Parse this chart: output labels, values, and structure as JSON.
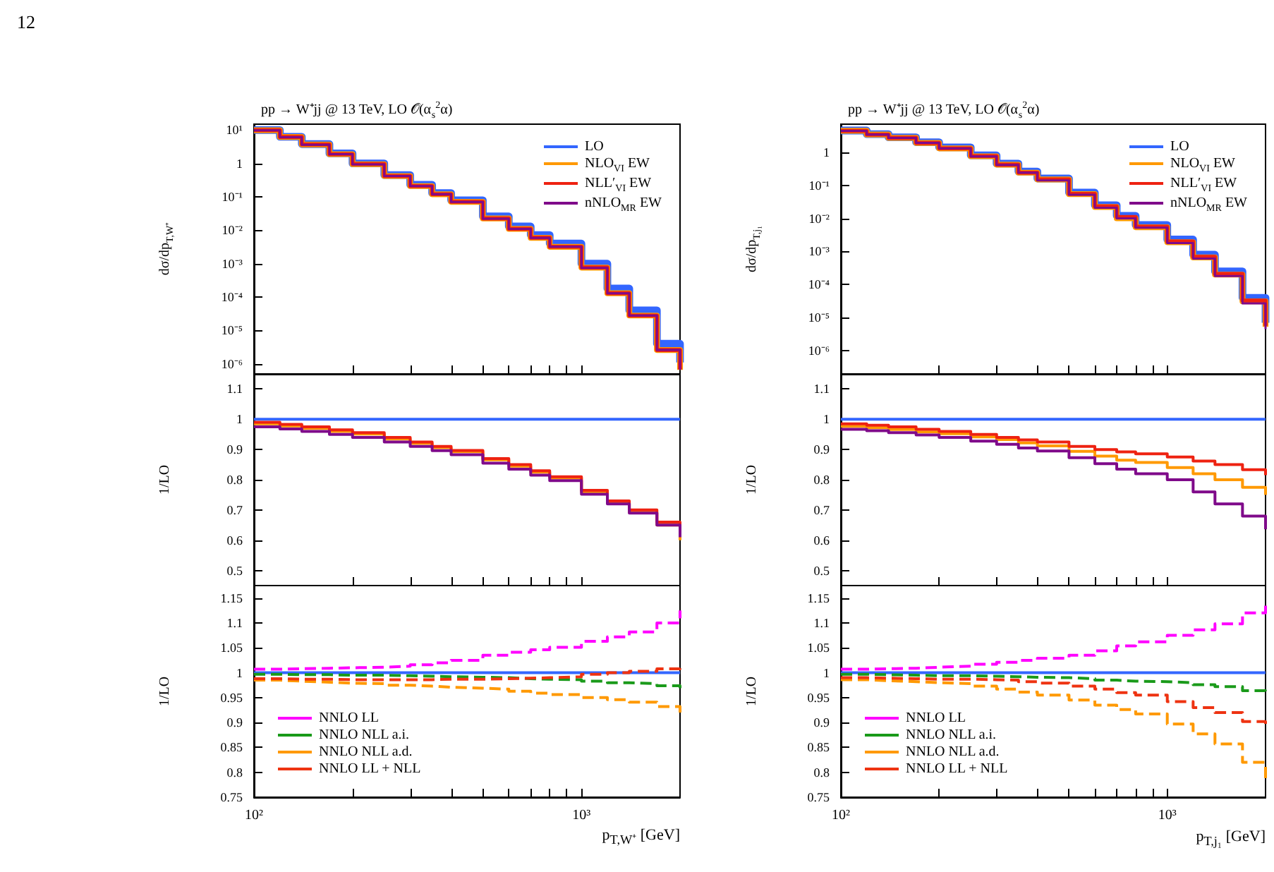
{
  "chart_data": [
    {
      "type": "step",
      "title": "pp → W⁺jj @ 13 TeV, LO 𝒪(α$_{s}$$^{2}$α)",
      "ylabel": "dσ/dp$_{T,W⁺}$",
      "annotations": [
        "12"
      ],
      "log": "xy",
      "legend": "top right",
      "tick_labels": "y",
      "x": [
        100,
        120,
        140,
        170,
        200,
        250,
        300,
        350,
        400,
        500,
        600,
        700,
        800,
        1000,
        1200,
        1400,
        1700,
        2000
      ],
      "xlim": [
        100,
        2000
      ],
      "xticks": [
        {
          "value": 100,
          "label": null
        },
        {
          "value": 200,
          "label": null
        },
        {
          "value": 300,
          "label": null
        },
        {
          "value": 400,
          "label": null
        },
        {
          "value": 500,
          "label": null
        },
        {
          "value": 600,
          "label": null
        },
        {
          "value": 700,
          "label": null
        },
        {
          "value": 800,
          "label": null
        },
        {
          "value": 900,
          "label": null
        },
        {
          "value": 1000,
          "label": null
        }
      ],
      "ylim": [
        5e-07,
        15
      ],
      "yticks": [
        {
          "value": 1e-06,
          "label": "10⁻⁶"
        },
        {
          "value": 1e-05,
          "label": "10⁻⁵"
        },
        {
          "value": 0.0001,
          "label": "10⁻⁴"
        },
        {
          "value": 0.001,
          "label": "10⁻³"
        },
        {
          "value": 0.01,
          "label": "10⁻²"
        },
        {
          "value": 0.1,
          "label": "10⁻¹"
        },
        1,
        {
          "value": 10,
          "label": "10¹"
        }
      ],
      "series": [
        {
          "name": "LO",
          "color": "#3366ff",
          "values": [
            10,
            6.3,
            3.8,
            2.0,
            1.0,
            0.45,
            0.23,
            0.13,
            0.079,
            0.026,
            0.013,
            0.0072,
            0.004,
            0.001,
            0.00018,
            4e-05,
            4e-06,
            1.1e-06
          ]
        },
        {
          "name": "NLO$_{VI}$ EW",
          "color": "#ff9900",
          "values": [
            9.9,
            6.2,
            3.7,
            1.9,
            0.95,
            0.42,
            0.21,
            0.12,
            0.071,
            0.0225,
            0.011,
            0.0059,
            0.0032,
            0.00076,
            0.00013,
            2.8e-05,
            2.6e-06,
            6.6e-07
          ]
        },
        {
          "name": "NLL′$_{VI}$ EW",
          "color": "#ee2211",
          "values": [
            9.9,
            6.2,
            3.7,
            1.9,
            0.96,
            0.42,
            0.21,
            0.12,
            0.071,
            0.0226,
            0.011,
            0.006,
            0.0032,
            0.00077,
            0.00013,
            2.8e-05,
            2.6e-06,
            6.8e-07
          ]
        },
        {
          "name": "nNLO$_{MR}$ EW",
          "color": "#7f0a8a",
          "values": [
            9.8,
            6.1,
            3.6,
            1.9,
            0.94,
            0.42,
            0.21,
            0.12,
            0.07,
            0.0222,
            0.011,
            0.0059,
            0.0032,
            0.00075,
            0.00013,
            2.8e-05,
            2.6e-06,
            6.7e-07
          ]
        }
      ]
    },
    {
      "type": "step",
      "title": "pp → W⁺jj @ 13 TeV, LO 𝒪(α$_{s}$$^{2}$α)",
      "ylabel": "dσ/dp$_{T,j₁}$",
      "log": "xy",
      "legend": "top right",
      "tick_labels": "y",
      "x": [
        100,
        120,
        140,
        170,
        200,
        250,
        300,
        350,
        400,
        500,
        600,
        700,
        800,
        1000,
        1200,
        1400,
        1700,
        2000
      ],
      "xlim": [
        100,
        2000
      ],
      "xticks": [
        {
          "value": 100,
          "label": null
        },
        {
          "value": 200,
          "label": null
        },
        {
          "value": 300,
          "label": null
        },
        {
          "value": 400,
          "label": null
        },
        {
          "value": 500,
          "label": null
        },
        {
          "value": 600,
          "label": null
        },
        {
          "value": 700,
          "label": null
        },
        {
          "value": 800,
          "label": null
        },
        {
          "value": 900,
          "label": null
        },
        {
          "value": 1000,
          "label": null
        }
      ],
      "ylim": [
        2e-07,
        7
      ],
      "yticks": [
        {
          "value": 1e-06,
          "label": "10⁻⁶"
        },
        {
          "value": 1e-05,
          "label": "10⁻⁵"
        },
        {
          "value": 0.0001,
          "label": "10⁻⁴"
        },
        {
          "value": 0.001,
          "label": "10⁻³"
        },
        {
          "value": 0.01,
          "label": "10⁻²"
        },
        {
          "value": 0.1,
          "label": "10⁻¹"
        },
        1
      ],
      "series": [
        {
          "name": "LO",
          "color": "#3366ff",
          "values": [
            4.5,
            3.5,
            2.8,
            2.0,
            1.4,
            0.8,
            0.45,
            0.26,
            0.16,
            0.06,
            0.025,
            0.012,
            0.0063,
            0.0023,
            0.0008,
            0.00025,
            4e-05,
            7e-06
          ]
        },
        {
          "name": "NLO$_{VI}$ EW",
          "color": "#ff9900",
          "values": [
            4.4,
            3.4,
            2.7,
            1.9,
            1.3,
            0.75,
            0.42,
            0.24,
            0.15,
            0.054,
            0.022,
            0.01,
            0.0054,
            0.0019,
            0.00066,
            0.0002,
            3.1e-05,
            5.3e-06
          ]
        },
        {
          "name": "NLL′$_{VI}$ EW",
          "color": "#ee2211",
          "values": [
            4.4,
            3.4,
            2.7,
            1.9,
            1.3,
            0.76,
            0.42,
            0.24,
            0.15,
            0.055,
            0.023,
            0.011,
            0.0056,
            0.002,
            0.00069,
            0.00021,
            3.3e-05,
            5.7e-06
          ]
        },
        {
          "name": "nNLO$_{MR}$ EW",
          "color": "#7f0a8a",
          "values": [
            4.4,
            3.4,
            2.7,
            1.9,
            1.3,
            0.74,
            0.41,
            0.24,
            0.14,
            0.052,
            0.021,
            0.01,
            0.0052,
            0.0018,
            0.00061,
            0.00018,
            2.7e-05,
            4.5e-06
          ]
        }
      ]
    },
    {
      "type": "step",
      "ylabel": "1/LO",
      "log": "x",
      "tick_labels": "y",
      "x": [
        100,
        120,
        140,
        170,
        200,
        250,
        300,
        350,
        400,
        500,
        600,
        700,
        800,
        1000,
        1200,
        1400,
        1700,
        2000
      ],
      "xlim": [
        100,
        2000
      ],
      "xticks": [
        {
          "value": 100,
          "label": null
        },
        {
          "value": 200,
          "label": null
        },
        {
          "value": 300,
          "label": null
        },
        {
          "value": 400,
          "label": null
        },
        {
          "value": 500,
          "label": null
        },
        {
          "value": 600,
          "label": null
        },
        {
          "value": 700,
          "label": null
        },
        {
          "value": 800,
          "label": null
        },
        {
          "value": 900,
          "label": null
        },
        {
          "value": 1000,
          "label": null
        }
      ],
      "ylim": [
        0.45,
        1.15
      ],
      "yticks": [
        0.5,
        0.6,
        0.7,
        0.8,
        0.9,
        1,
        1.1
      ],
      "series": [
        {
          "color": "#3366ff",
          "values": [
            1,
            1,
            1,
            1,
            1,
            1,
            1,
            1,
            1,
            1,
            1,
            1,
            1,
            1,
            1,
            1,
            1,
            1
          ]
        },
        {
          "color": "#ff9900",
          "values": [
            0.985,
            0.978,
            0.97,
            0.96,
            0.951,
            0.935,
            0.92,
            0.906,
            0.893,
            0.866,
            0.845,
            0.825,
            0.806,
            0.76,
            0.725,
            0.692,
            0.65,
            0.6
          ]
        },
        {
          "color": "#ee2211",
          "values": [
            0.99,
            0.983,
            0.975,
            0.965,
            0.956,
            0.94,
            0.925,
            0.91,
            0.897,
            0.87,
            0.85,
            0.83,
            0.81,
            0.765,
            0.73,
            0.7,
            0.66,
            0.62
          ]
        },
        {
          "color": "#7f0a8a",
          "values": [
            0.975,
            0.968,
            0.96,
            0.95,
            0.94,
            0.925,
            0.91,
            0.896,
            0.883,
            0.855,
            0.835,
            0.815,
            0.797,
            0.752,
            0.72,
            0.69,
            0.65,
            0.61
          ]
        }
      ]
    },
    {
      "type": "step",
      "ylabel": "1/LO",
      "log": "x",
      "tick_labels": "y",
      "x": [
        100,
        120,
        140,
        170,
        200,
        250,
        300,
        350,
        400,
        500,
        600,
        700,
        800,
        1000,
        1200,
        1400,
        1700,
        2000
      ],
      "xlim": [
        100,
        2000
      ],
      "xticks": [
        {
          "value": 100,
          "label": null
        },
        {
          "value": 200,
          "label": null
        },
        {
          "value": 300,
          "label": null
        },
        {
          "value": 400,
          "label": null
        },
        {
          "value": 500,
          "label": null
        },
        {
          "value": 600,
          "label": null
        },
        {
          "value": 700,
          "label": null
        },
        {
          "value": 800,
          "label": null
        },
        {
          "value": 900,
          "label": null
        },
        {
          "value": 1000,
          "label": null
        }
      ],
      "ylim": [
        0.45,
        1.15
      ],
      "yticks": [
        0.5,
        0.6,
        0.7,
        0.8,
        0.9,
        1,
        1.1
      ],
      "series": [
        {
          "color": "#3366ff",
          "values": [
            1,
            1,
            1,
            1,
            1,
            1,
            1,
            1,
            1,
            1,
            1,
            1,
            1,
            1,
            1,
            1,
            1,
            1
          ]
        },
        {
          "color": "#ff9900",
          "values": [
            0.977,
            0.972,
            0.966,
            0.958,
            0.952,
            0.942,
            0.933,
            0.922,
            0.912,
            0.894,
            0.878,
            0.865,
            0.857,
            0.84,
            0.82,
            0.8,
            0.775,
            0.75
          ]
        },
        {
          "color": "#ee2211",
          "values": [
            0.985,
            0.98,
            0.975,
            0.967,
            0.96,
            0.95,
            0.94,
            0.932,
            0.925,
            0.91,
            0.9,
            0.892,
            0.886,
            0.875,
            0.862,
            0.85,
            0.833,
            0.815
          ]
        },
        {
          "color": "#7f0a8a",
          "values": [
            0.967,
            0.962,
            0.956,
            0.948,
            0.94,
            0.928,
            0.917,
            0.905,
            0.895,
            0.873,
            0.853,
            0.835,
            0.82,
            0.8,
            0.76,
            0.72,
            0.68,
            0.636
          ]
        }
      ]
    },
    {
      "type": "step",
      "ylabel": "1/LO",
      "xlabel": "p$_{T,W⁺}$ [GeV]",
      "log": "x",
      "legend": "bottom left",
      "x": [
        100,
        120,
        140,
        170,
        200,
        250,
        300,
        350,
        400,
        500,
        600,
        700,
        800,
        1000,
        1200,
        1400,
        1700,
        2000
      ],
      "xlim": [
        100,
        2000
      ],
      "xticks": [
        {
          "value": 100,
          "label": "10²"
        },
        {
          "value": 200,
          "label": null
        },
        {
          "value": 300,
          "label": null
        },
        {
          "value": 400,
          "label": null
        },
        {
          "value": 500,
          "label": null
        },
        {
          "value": 600,
          "label": null
        },
        {
          "value": 700,
          "label": null
        },
        {
          "value": 800,
          "label": null
        },
        {
          "value": 900,
          "label": null
        },
        {
          "value": 1000,
          "label": "10³"
        }
      ],
      "ylim": [
        0.75,
        1.175
      ],
      "yticks": [
        0.75,
        0.8,
        0.85,
        0.9,
        0.95,
        1,
        1.05,
        1.1,
        1.15
      ],
      "series": [
        {
          "color": "#3366ff",
          "values": [
            1,
            1,
            1,
            1,
            1,
            1,
            1,
            1,
            1,
            1,
            1,
            1,
            1,
            1,
            1,
            1,
            1,
            1
          ]
        },
        {
          "name": "NNLO LL",
          "color": "#ff00ff",
          "line_style": "dashed",
          "values": [
            1.007,
            1.008,
            1.009,
            1.01,
            1.011,
            1.013,
            1.016,
            1.02,
            1.025,
            1.035,
            1.041,
            1.046,
            1.051,
            1.063,
            1.072,
            1.082,
            1.1,
            1.125
          ]
        },
        {
          "name": "NNLO NLL a.i.",
          "color": "#1a9a1a",
          "line_style": "dashed",
          "values": [
            0.997,
            0.996,
            0.996,
            0.995,
            0.995,
            0.994,
            0.993,
            0.992,
            0.991,
            0.99,
            0.988,
            0.987,
            0.986,
            0.983,
            0.98,
            0.978,
            0.974,
            0.969
          ]
        },
        {
          "name": "NNLO NLL a.d.",
          "color": "#ff9900",
          "line_style": "dashed",
          "values": [
            0.985,
            0.983,
            0.981,
            0.979,
            0.978,
            0.975,
            0.973,
            0.971,
            0.969,
            0.967,
            0.963,
            0.959,
            0.956,
            0.95,
            0.946,
            0.941,
            0.932,
            0.92
          ]
        },
        {
          "name": "NNLO LL + NLL",
          "color": "#ee3311",
          "line_style": "dashed",
          "values": [
            0.988,
            0.987,
            0.987,
            0.986,
            0.986,
            0.986,
            0.986,
            0.987,
            0.987,
            0.988,
            0.989,
            0.99,
            0.992,
            0.997,
            1.0,
            1.003,
            1.008,
            1.016
          ]
        }
      ]
    },
    {
      "type": "step",
      "ylabel": "1/LO",
      "xlabel": "p$_{T,j₁}$ [GeV]",
      "log": "x",
      "legend": "bottom left",
      "x": [
        100,
        120,
        140,
        170,
        200,
        250,
        300,
        350,
        400,
        500,
        600,
        700,
        800,
        1000,
        1200,
        1400,
        1700,
        2000
      ],
      "xlim": [
        100,
        2000
      ],
      "xticks": [
        {
          "value": 100,
          "label": "10²"
        },
        {
          "value": 200,
          "label": null
        },
        {
          "value": 300,
          "label": null
        },
        {
          "value": 400,
          "label": null
        },
        {
          "value": 500,
          "label": null
        },
        {
          "value": 600,
          "label": null
        },
        {
          "value": 700,
          "label": null
        },
        {
          "value": 800,
          "label": null
        },
        {
          "value": 900,
          "label": null
        },
        {
          "value": 1000,
          "label": "10³"
        }
      ],
      "ylim": [
        0.75,
        1.175
      ],
      "yticks": [
        0.75,
        0.8,
        0.85,
        0.9,
        0.95,
        1,
        1.05,
        1.1,
        1.15
      ],
      "series": [
        {
          "color": "#3366ff",
          "values": [
            1,
            1,
            1,
            1,
            1,
            1,
            1,
            1,
            1,
            1,
            1,
            1,
            1,
            1,
            1,
            1,
            1,
            1
          ]
        },
        {
          "name": "NNLO LL",
          "color": "#ff00ff",
          "line_style": "dashed",
          "values": [
            1.007,
            1.008,
            1.009,
            1.011,
            1.013,
            1.017,
            1.021,
            1.025,
            1.029,
            1.035,
            1.044,
            1.054,
            1.062,
            1.075,
            1.086,
            1.098,
            1.12,
            1.145
          ]
        },
        {
          "name": "NNLO NLL a.i.",
          "color": "#1a9a1a",
          "line_style": "dashed",
          "values": [
            0.997,
            0.996,
            0.995,
            0.994,
            0.994,
            0.993,
            0.992,
            0.991,
            0.99,
            0.988,
            0.985,
            0.983,
            0.982,
            0.98,
            0.976,
            0.972,
            0.964,
            0.956
          ]
        },
        {
          "name": "NNLO NLL a.d.",
          "color": "#ff9900",
          "line_style": "dashed",
          "values": [
            0.986,
            0.984,
            0.982,
            0.98,
            0.978,
            0.973,
            0.967,
            0.961,
            0.955,
            0.945,
            0.935,
            0.926,
            0.917,
            0.897,
            0.877,
            0.857,
            0.82,
            0.78
          ]
        },
        {
          "name": "NNLO LL + NLL",
          "color": "#ee3311",
          "line_style": "dashed",
          "values": [
            0.99,
            0.989,
            0.988,
            0.987,
            0.987,
            0.986,
            0.985,
            0.982,
            0.979,
            0.973,
            0.967,
            0.96,
            0.955,
            0.942,
            0.93,
            0.92,
            0.902,
            0.888
          ]
        }
      ]
    }
  ]
}
